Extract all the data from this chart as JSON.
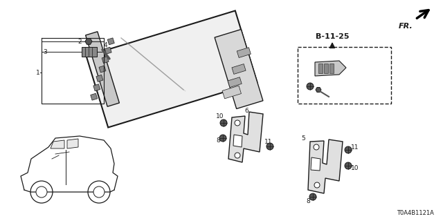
{
  "bg_color": "#ffffff",
  "fig_width": 6.4,
  "fig_height": 3.2,
  "dpi": 100,
  "line_color": "#1a1a1a",
  "diagram_code": "T0A4B1121A"
}
